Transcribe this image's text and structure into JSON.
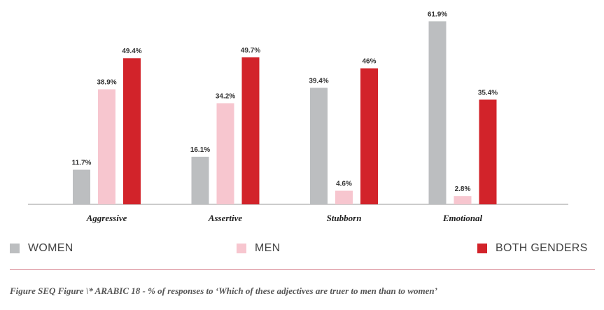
{
  "chart_data": {
    "type": "bar",
    "categories": [
      "Aggressive",
      "Assertive",
      "Stubborn",
      "Emotional"
    ],
    "series": [
      {
        "name": "WOMEN",
        "values": [
          11.7,
          16.1,
          39.4,
          61.9
        ],
        "labels": [
          "11.7%",
          "16.1%",
          "39.4%",
          "61.9%"
        ],
        "color": "#bcbec0"
      },
      {
        "name": "MEN",
        "values": [
          38.9,
          34.2,
          4.6,
          2.8
        ],
        "labels": [
          "38.9%",
          "34.2%",
          "4.6%",
          "2.8%"
        ],
        "color": "#f7c6cf"
      },
      {
        "name": "BOTH GENDERS",
        "values": [
          49.4,
          49.7,
          46,
          35.4
        ],
        "labels": [
          "49.4%",
          "49.7%",
          "46%",
          "35.4%"
        ],
        "color": "#d2232a"
      }
    ],
    "ylim": [
      0,
      62
    ],
    "grid": false,
    "legend_position": "bottom"
  },
  "caption": "Figure  SEQ Figure \\* ARABIC 18 - % of responses to ‘Which of these adjectives are truer to men than to women’",
  "colors": {
    "rule": "#d88a95",
    "axis": "#999999"
  }
}
